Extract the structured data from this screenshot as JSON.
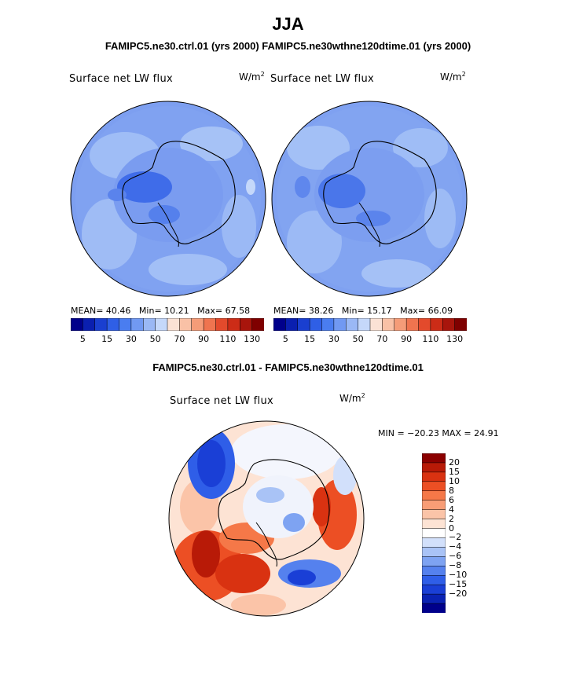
{
  "header": {
    "season": "JJA",
    "subtitle": "FAMIPC5.ne30.ctrl.01 (yrs 2000)  FAMIPC5.ne30wthne120dtime.01 (yrs 2000)"
  },
  "panel_left": {
    "variable": "Surface net LW flux",
    "units_base": "W/m",
    "units_exp": "2",
    "mean_label": "MEAN=",
    "mean_value": "40.46",
    "min_label": "Min=",
    "min_value": "10.21",
    "max_label": "Max=",
    "max_value": "67.58"
  },
  "panel_right": {
    "variable": "Surface net LW flux",
    "units_base": "W/m",
    "units_exp": "2",
    "mean_label": "MEAN=",
    "mean_value": "38.26",
    "min_label": "Min=",
    "min_value": "15.17",
    "max_label": "Max=",
    "max_value": "66.09"
  },
  "top_colorbar": {
    "colors": [
      "#00008b",
      "#0a1fb0",
      "#1a3fd0",
      "#2f5fe6",
      "#4a7df0",
      "#7199f2",
      "#9ab8f5",
      "#c5d8fa",
      "#fbe2d5",
      "#f9c1a6",
      "#f59c78",
      "#ef744f",
      "#e34a2c",
      "#cc2c17",
      "#a8150c",
      "#7f0000"
    ],
    "tick_labels": [
      "5",
      "15",
      "30",
      "50",
      "70",
      "90",
      "110",
      "130"
    ]
  },
  "diff": {
    "title": "FAMIPC5.ne30.ctrl.01 - FAMIPC5.ne30wthne120dtime.01",
    "variable": "Surface net LW flux",
    "units_base": "W/m",
    "units_exp": "2",
    "minmax_text": "MIN = −20.23 MAX =   24.91",
    "colorbar": {
      "colors": [
        "#8b0000",
        "#b81a07",
        "#d93211",
        "#ec4f24",
        "#f57848",
        "#f89d76",
        "#fbc4a8",
        "#fde3d4",
        "#ffffff",
        "#d2e0fb",
        "#a9c3f6",
        "#7ea3f2",
        "#5581ee",
        "#2f5ee8",
        "#1a3fd6",
        "#0a22b3",
        "#00008b"
      ],
      "labels": [
        "20",
        "15",
        "10",
        "8",
        "6",
        "4",
        "2",
        "0",
        "−2",
        "−4",
        "−6",
        "−8",
        "−10",
        "−15",
        "−20"
      ]
    }
  }
}
